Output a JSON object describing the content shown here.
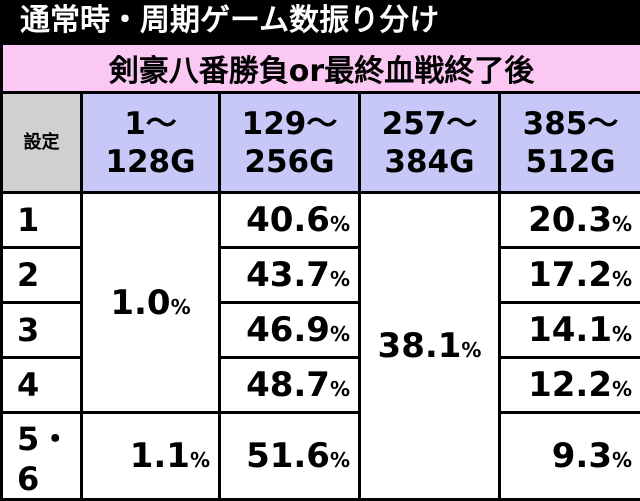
{
  "title": "通常時・周期ゲーム数振り分け",
  "subtitle": "剣豪八番勝負or最終血戦終了後",
  "table": {
    "header": [
      "設定",
      [
        "1～",
        "128G"
      ],
      [
        "129～",
        "256G"
      ],
      [
        "257～",
        "384G"
      ],
      [
        "385～",
        "512G"
      ]
    ],
    "rows": [
      {
        "setting": "1",
        "cells": [
          {
            "value": "1.0",
            "unit": "%"
          },
          {
            "value": "40.6",
            "unit": "%"
          },
          {
            "value": "38.1",
            "unit": "%"
          },
          {
            "value": "20.3",
            "unit": "%"
          }
        ]
      },
      {
        "setting": "2",
        "cells": [
          {
            "value": "43.7",
            "unit": "%"
          },
          {
            "value": "17.2",
            "unit": "%"
          }
        ]
      },
      {
        "setting": "3",
        "cells": [
          {
            "value": "46.9",
            "unit": "%"
          },
          {
            "value": "14.1",
            "unit": "%"
          }
        ]
      },
      {
        "setting": "4",
        "cells": [
          {
            "value": "48.7",
            "unit": "%"
          },
          {
            "value": "12.2",
            "unit": "%"
          }
        ]
      },
      {
        "setting": "5・6",
        "cells": [
          {
            "value": "1.1",
            "unit": "%"
          },
          {
            "value": "51.6",
            "unit": "%"
          },
          {
            "value": "9.3",
            "unit": "%"
          }
        ]
      }
    ]
  }
}
